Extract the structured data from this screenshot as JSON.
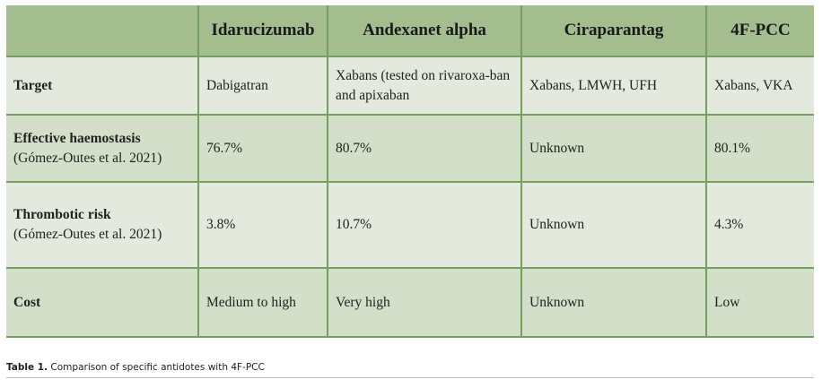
{
  "table": {
    "headers": [
      "",
      "Idarucizumab",
      "Andexanet alpha",
      "Ciraparantag",
      "4F-PCC"
    ],
    "rows": [
      {
        "label": "Target",
        "sublabel": "",
        "cells": [
          "Dabigatran",
          "Xabans (tested on rivaroxa-ban and apixaban",
          "Xabans, LMWH, UFH",
          "Xabans, VKA"
        ]
      },
      {
        "label": "Effective haemostasis",
        "sublabel": "(Gómez-Outes et al. 2021)",
        "cells": [
          "76.7%",
          "80.7%",
          "Unknown",
          "80.1%"
        ]
      },
      {
        "label": "Thrombotic risk",
        "sublabel": "(Gómez-Outes et al. 2021)",
        "cells": [
          "3.8%",
          "10.7%",
          "Unknown",
          "4.3%"
        ]
      },
      {
        "label": "Cost",
        "sublabel": "",
        "cells": [
          "Medium to high",
          "Very high",
          "Unknown",
          "Low"
        ]
      }
    ]
  },
  "caption": {
    "label": "Table 1.",
    "text": " Comparison of specific antidotes with 4F-PCC"
  },
  "colors": {
    "header": "#a3bd8e",
    "row_light": "#e3e9dd",
    "row_dark": "#d4dfc9",
    "border": "#73a05e"
  }
}
